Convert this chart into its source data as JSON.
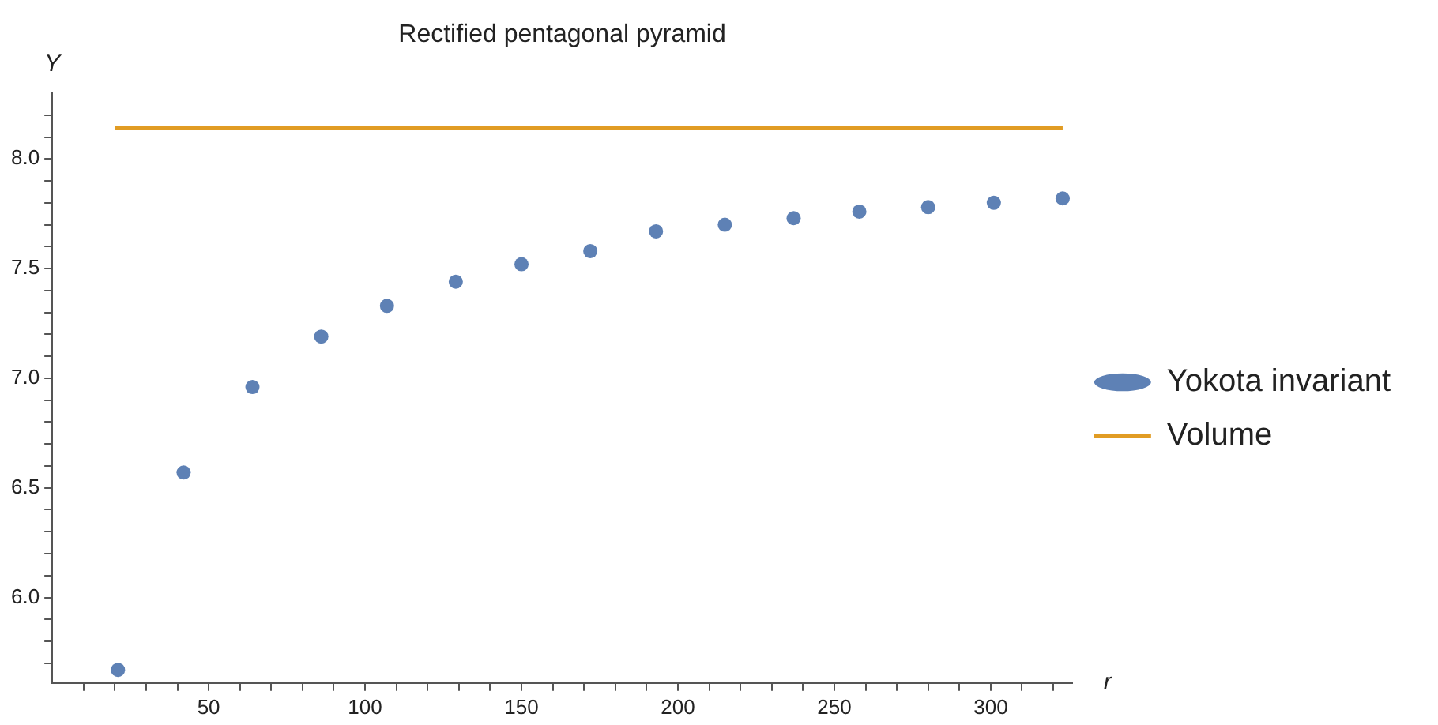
{
  "chart_data": {
    "type": "scatter",
    "title": "Rectified pentagonal pyramid",
    "xlabel": "r",
    "ylabel": "Y",
    "xlim": [
      0,
      326
    ],
    "ylim": [
      5.61,
      8.3
    ],
    "xticks": [
      {
        "value": 10,
        "label": null
      },
      {
        "value": 20,
        "label": null
      },
      {
        "value": 30,
        "label": null
      },
      {
        "value": 40,
        "label": null
      },
      50,
      {
        "value": 60,
        "label": null
      },
      {
        "value": 70,
        "label": null
      },
      {
        "value": 80,
        "label": null
      },
      {
        "value": 90,
        "label": null
      },
      100,
      {
        "value": 110,
        "label": null
      },
      {
        "value": 120,
        "label": null
      },
      {
        "value": 130,
        "label": null
      },
      {
        "value": 140,
        "label": null
      },
      150,
      {
        "value": 160,
        "label": null
      },
      {
        "value": 170,
        "label": null
      },
      {
        "value": 180,
        "label": null
      },
      {
        "value": 190,
        "label": null
      },
      200,
      {
        "value": 210,
        "label": null
      },
      {
        "value": 220,
        "label": null
      },
      {
        "value": 230,
        "label": null
      },
      {
        "value": 240,
        "label": null
      },
      250,
      {
        "value": 260,
        "label": null
      },
      {
        "value": 270,
        "label": null
      },
      {
        "value": 280,
        "label": null
      },
      {
        "value": 290,
        "label": null
      },
      300,
      {
        "value": 310,
        "label": null
      },
      {
        "value": 320,
        "label": null
      }
    ],
    "yticks": [
      {
        "value": 5.7,
        "label": null
      },
      {
        "value": 5.8,
        "label": null
      },
      {
        "value": 5.9,
        "label": null
      },
      {
        "value": 6.0,
        "label": "6.0"
      },
      {
        "value": 6.1,
        "label": null
      },
      {
        "value": 6.2,
        "label": null
      },
      {
        "value": 6.3,
        "label": null
      },
      {
        "value": 6.4,
        "label": null
      },
      6.5,
      {
        "value": 6.6,
        "label": null
      },
      {
        "value": 6.7,
        "label": null
      },
      {
        "value": 6.8,
        "label": null
      },
      {
        "value": 6.9,
        "label": null
      },
      {
        "value": 7.0,
        "label": "7.0"
      },
      {
        "value": 7.1,
        "label": null
      },
      {
        "value": 7.2,
        "label": null
      },
      {
        "value": 7.3,
        "label": null
      },
      {
        "value": 7.4,
        "label": null
      },
      7.5,
      {
        "value": 7.6,
        "label": null
      },
      {
        "value": 7.7,
        "label": null
      },
      {
        "value": 7.8,
        "label": null
      },
      {
        "value": 7.9,
        "label": null
      },
      {
        "value": 8.0,
        "label": "8.0"
      },
      {
        "value": 8.1,
        "label": null
      },
      {
        "value": 8.2,
        "label": null
      }
    ],
    "grid": false,
    "legend": "right",
    "series": [
      {
        "name": "Yokota invariant",
        "type": "scatter",
        "marker": "circle",
        "color": "#5e81b5",
        "x": [
          21,
          42,
          64,
          86,
          107,
          129,
          150,
          172,
          193,
          215,
          237,
          258,
          280,
          301,
          323
        ],
        "values": [
          5.67,
          6.57,
          6.96,
          7.19,
          7.33,
          7.44,
          7.52,
          7.58,
          7.67,
          7.7,
          7.73,
          7.76,
          7.78,
          7.8,
          7.82
        ]
      },
      {
        "name": "Volume",
        "type": "line",
        "marker": "none",
        "line_style": "solid",
        "color": "#e19c24",
        "x": [
          20,
          323
        ],
        "values": [
          8.14,
          8.14
        ]
      }
    ]
  }
}
